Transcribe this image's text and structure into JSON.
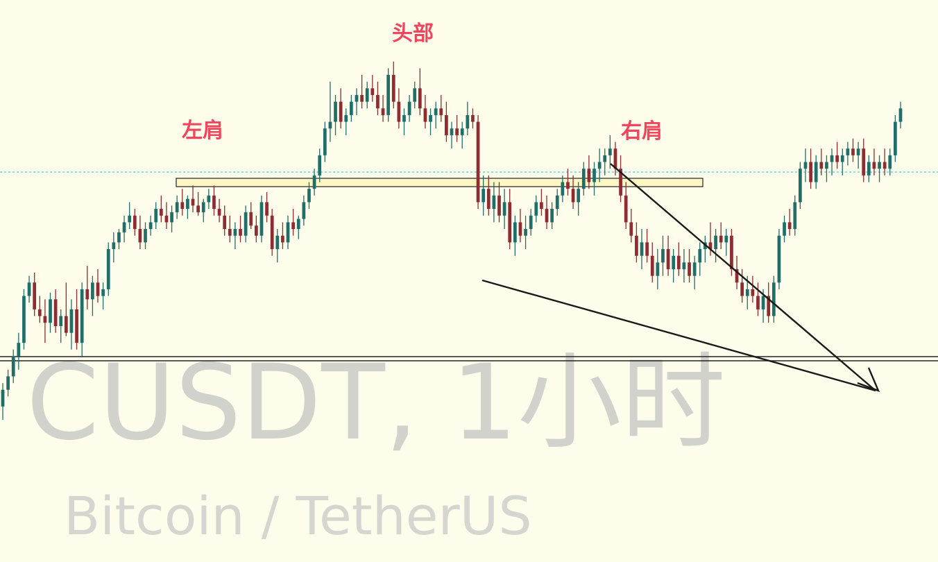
{
  "watermark": {
    "pair": "CUSDT, 1小时",
    "name": "Bitcoin / TetherUS"
  },
  "annotations": {
    "left_shoulder": "左肩",
    "head": "头部",
    "right_shoulder": "右肩"
  },
  "colors": {
    "background": "#fefcea",
    "bull": "#1f6e6a",
    "bear": "#8e2b33",
    "annotation": "#f0465d",
    "neckline_fill": "#fdf7c3",
    "trendline": "#1a1a1a",
    "price_line": "#5fc8c3"
  },
  "chart_data": {
    "type": "candlestick",
    "title": "",
    "xlabel": "",
    "ylabel": "",
    "grid": false,
    "last_price_line": true,
    "patterns": [
      "head and shoulders",
      "descending broadening wedge"
    ],
    "ohlc_relative": [
      [
        0.23,
        0.3,
        0.19,
        0.28
      ],
      [
        0.28,
        0.34,
        0.26,
        0.32
      ],
      [
        0.32,
        0.4,
        0.3,
        0.38
      ],
      [
        0.38,
        0.45,
        0.34,
        0.42
      ],
      [
        0.42,
        0.58,
        0.4,
        0.56
      ],
      [
        0.56,
        0.62,
        0.54,
        0.6
      ],
      [
        0.6,
        0.63,
        0.5,
        0.52
      ],
      [
        0.52,
        0.56,
        0.48,
        0.5
      ],
      [
        0.5,
        0.55,
        0.42,
        0.48
      ],
      [
        0.48,
        0.57,
        0.45,
        0.55
      ],
      [
        0.55,
        0.58,
        0.45,
        0.47
      ],
      [
        0.47,
        0.52,
        0.42,
        0.5
      ],
      [
        0.5,
        0.6,
        0.44,
        0.45
      ],
      [
        0.45,
        0.55,
        0.4,
        0.52
      ],
      [
        0.52,
        0.58,
        0.4,
        0.42
      ],
      [
        0.42,
        0.6,
        0.38,
        0.58
      ],
      [
        0.58,
        0.65,
        0.52,
        0.55
      ],
      [
        0.55,
        0.62,
        0.5,
        0.6
      ],
      [
        0.6,
        0.64,
        0.54,
        0.56
      ],
      [
        0.56,
        0.6,
        0.52,
        0.58
      ],
      [
        0.58,
        0.72,
        0.56,
        0.7
      ],
      [
        0.7,
        0.75,
        0.66,
        0.72
      ],
      [
        0.72,
        0.76,
        0.7,
        0.75
      ],
      [
        0.75,
        0.8,
        0.72,
        0.78
      ],
      [
        0.78,
        0.84,
        0.76,
        0.8
      ],
      [
        0.8,
        0.82,
        0.74,
        0.76
      ],
      [
        0.76,
        0.8,
        0.7,
        0.72
      ],
      [
        0.72,
        0.78,
        0.7,
        0.76
      ],
      [
        0.76,
        0.8,
        0.74,
        0.78
      ],
      [
        0.78,
        0.84,
        0.76,
        0.82
      ],
      [
        0.82,
        0.86,
        0.78,
        0.8
      ],
      [
        0.8,
        0.84,
        0.76,
        0.78
      ],
      [
        0.78,
        0.83,
        0.75,
        0.81
      ],
      [
        0.81,
        0.86,
        0.79,
        0.84
      ],
      [
        0.84,
        0.88,
        0.8,
        0.82
      ],
      [
        0.82,
        0.86,
        0.79,
        0.85
      ],
      [
        0.85,
        0.89,
        0.81,
        0.83
      ],
      [
        0.83,
        0.87,
        0.8,
        0.81
      ],
      [
        0.81,
        0.85,
        0.78,
        0.84
      ],
      [
        0.84,
        0.88,
        0.82,
        0.86
      ],
      [
        0.86,
        0.89,
        0.8,
        0.82
      ],
      [
        0.82,
        0.85,
        0.78,
        0.8
      ],
      [
        0.8,
        0.83,
        0.74,
        0.76
      ],
      [
        0.76,
        0.8,
        0.72,
        0.74
      ],
      [
        0.74,
        0.78,
        0.7,
        0.76
      ],
      [
        0.76,
        0.8,
        0.72,
        0.74
      ],
      [
        0.74,
        0.83,
        0.72,
        0.81
      ],
      [
        0.81,
        0.84,
        0.76,
        0.77
      ],
      [
        0.77,
        0.8,
        0.72,
        0.74
      ],
      [
        0.74,
        0.86,
        0.72,
        0.84
      ],
      [
        0.84,
        0.87,
        0.78,
        0.8
      ],
      [
        0.8,
        0.82,
        0.68,
        0.7
      ],
      [
        0.7,
        0.76,
        0.66,
        0.74
      ],
      [
        0.74,
        0.78,
        0.7,
        0.72
      ],
      [
        0.72,
        0.8,
        0.7,
        0.78
      ],
      [
        0.78,
        0.82,
        0.74,
        0.76
      ],
      [
        0.76,
        0.8,
        0.73,
        0.79
      ],
      [
        0.79,
        0.86,
        0.77,
        0.84
      ],
      [
        0.84,
        0.9,
        0.82,
        0.88
      ],
      [
        0.88,
        0.94,
        0.86,
        0.92
      ],
      [
        0.92,
        1.0,
        0.9,
        0.98
      ],
      [
        0.98,
        1.08,
        0.96,
        1.06
      ],
      [
        1.06,
        1.2,
        1.02,
        1.08
      ],
      [
        1.08,
        1.16,
        1.04,
        1.14
      ],
      [
        1.14,
        1.18,
        1.06,
        1.08
      ],
      [
        1.08,
        1.12,
        1.04,
        1.1
      ],
      [
        1.1,
        1.16,
        1.08,
        1.14
      ],
      [
        1.14,
        1.18,
        1.1,
        1.16
      ],
      [
        1.16,
        1.22,
        1.12,
        1.14
      ],
      [
        1.14,
        1.2,
        1.12,
        1.18
      ],
      [
        1.18,
        1.22,
        1.14,
        1.16
      ],
      [
        1.16,
        1.2,
        1.1,
        1.12
      ],
      [
        1.12,
        1.16,
        1.08,
        1.1
      ],
      [
        1.1,
        1.24,
        1.08,
        1.22
      ],
      [
        1.22,
        1.26,
        1.12,
        1.14
      ],
      [
        1.14,
        1.18,
        1.06,
        1.08
      ],
      [
        1.08,
        1.12,
        1.04,
        1.1
      ],
      [
        1.1,
        1.16,
        1.08,
        1.14
      ],
      [
        1.14,
        1.2,
        1.12,
        1.18
      ],
      [
        1.18,
        1.24,
        1.1,
        1.12
      ],
      [
        1.12,
        1.16,
        1.06,
        1.08
      ],
      [
        1.08,
        1.12,
        1.04,
        1.1
      ],
      [
        1.1,
        1.14,
        1.06,
        1.12
      ],
      [
        1.12,
        1.16,
        1.08,
        1.1
      ],
      [
        1.1,
        1.14,
        1.02,
        1.04
      ],
      [
        1.04,
        1.08,
        1.0,
        1.06
      ],
      [
        1.06,
        1.1,
        1.02,
        1.04
      ],
      [
        1.04,
        1.08,
        1.0,
        1.06
      ],
      [
        1.06,
        1.14,
        1.04,
        1.1
      ],
      [
        1.1,
        1.12,
        1.06,
        1.08
      ],
      [
        1.08,
        1.1,
        0.82,
        0.84
      ],
      [
        0.84,
        0.92,
        0.8,
        0.88
      ],
      [
        0.88,
        0.92,
        0.8,
        0.82
      ],
      [
        0.82,
        0.9,
        0.78,
        0.86
      ],
      [
        0.86,
        0.9,
        0.78,
        0.8
      ],
      [
        0.8,
        0.88,
        0.76,
        0.84
      ],
      [
        0.84,
        0.88,
        0.7,
        0.72
      ],
      [
        0.72,
        0.8,
        0.68,
        0.78
      ],
      [
        0.78,
        0.82,
        0.72,
        0.74
      ],
      [
        0.74,
        0.8,
        0.7,
        0.76
      ],
      [
        0.76,
        0.82,
        0.74,
        0.8
      ],
      [
        0.8,
        0.86,
        0.78,
        0.84
      ],
      [
        0.84,
        0.88,
        0.8,
        0.82
      ],
      [
        0.82,
        0.86,
        0.76,
        0.78
      ],
      [
        0.78,
        0.84,
        0.76,
        0.82
      ],
      [
        0.82,
        0.88,
        0.8,
        0.86
      ],
      [
        0.86,
        0.92,
        0.84,
        0.9
      ],
      [
        0.9,
        0.94,
        0.86,
        0.88
      ],
      [
        0.88,
        0.92,
        0.82,
        0.84
      ],
      [
        0.84,
        0.9,
        0.8,
        0.88
      ],
      [
        0.88,
        0.96,
        0.86,
        0.94
      ],
      [
        0.94,
        0.98,
        0.88,
        0.9
      ],
      [
        0.9,
        0.96,
        0.86,
        0.94
      ],
      [
        0.94,
        1.0,
        0.9,
        0.96
      ],
      [
        0.96,
        1.0,
        0.92,
        0.98
      ],
      [
        0.98,
        1.04,
        0.94,
        1.0
      ],
      [
        1.0,
        1.02,
        0.92,
        0.94
      ],
      [
        0.94,
        0.98,
        0.84,
        0.86
      ],
      [
        0.86,
        0.9,
        0.76,
        0.78
      ],
      [
        0.78,
        0.82,
        0.72,
        0.74
      ],
      [
        0.74,
        0.78,
        0.66,
        0.68
      ],
      [
        0.68,
        0.76,
        0.64,
        0.72
      ],
      [
        0.72,
        0.76,
        0.66,
        0.68
      ],
      [
        0.68,
        0.72,
        0.6,
        0.62
      ],
      [
        0.62,
        0.7,
        0.58,
        0.66
      ],
      [
        0.66,
        0.74,
        0.62,
        0.7
      ],
      [
        0.7,
        0.74,
        0.62,
        0.64
      ],
      [
        0.64,
        0.7,
        0.6,
        0.68
      ],
      [
        0.68,
        0.72,
        0.62,
        0.64
      ],
      [
        0.64,
        0.7,
        0.6,
        0.66
      ],
      [
        0.66,
        0.7,
        0.6,
        0.62
      ],
      [
        0.62,
        0.68,
        0.58,
        0.66
      ],
      [
        0.66,
        0.72,
        0.62,
        0.7
      ],
      [
        0.7,
        0.74,
        0.66,
        0.72
      ],
      [
        0.72,
        0.78,
        0.68,
        0.7
      ],
      [
        0.7,
        0.76,
        0.66,
        0.74
      ],
      [
        0.74,
        0.78,
        0.7,
        0.72
      ],
      [
        0.72,
        0.76,
        0.68,
        0.74
      ],
      [
        0.74,
        0.76,
        0.62,
        0.64
      ],
      [
        0.64,
        0.68,
        0.58,
        0.6
      ],
      [
        0.6,
        0.64,
        0.54,
        0.56
      ],
      [
        0.56,
        0.62,
        0.52,
        0.58
      ],
      [
        0.58,
        0.62,
        0.54,
        0.56
      ],
      [
        0.56,
        0.6,
        0.5,
        0.52
      ],
      [
        0.52,
        0.58,
        0.48,
        0.56
      ],
      [
        0.56,
        0.6,
        0.48,
        0.5
      ],
      [
        0.5,
        0.62,
        0.48,
        0.6
      ],
      [
        0.6,
        0.76,
        0.58,
        0.74
      ],
      [
        0.74,
        0.8,
        0.72,
        0.78
      ],
      [
        0.78,
        0.82,
        0.74,
        0.76
      ],
      [
        0.76,
        0.86,
        0.74,
        0.84
      ],
      [
        0.84,
        0.96,
        0.82,
        0.94
      ],
      [
        0.94,
        1.0,
        0.9,
        0.96
      ],
      [
        0.96,
        1.0,
        0.88,
        0.9
      ],
      [
        0.9,
        0.98,
        0.88,
        0.96
      ],
      [
        0.96,
        1.0,
        0.92,
        0.94
      ],
      [
        0.94,
        0.98,
        0.9,
        0.96
      ],
      [
        0.96,
        1.0,
        0.92,
        0.98
      ],
      [
        0.98,
        1.02,
        0.94,
        0.96
      ],
      [
        0.96,
        1.0,
        0.92,
        0.98
      ],
      [
        0.98,
        1.02,
        0.95,
        1.0
      ],
      [
        1.0,
        1.03,
        0.96,
        0.98
      ],
      [
        0.98,
        1.02,
        0.94,
        1.0
      ],
      [
        1.0,
        1.03,
        0.9,
        0.92
      ],
      [
        0.92,
        0.98,
        0.9,
        0.96
      ],
      [
        0.96,
        1.0,
        0.92,
        0.94
      ],
      [
        0.94,
        0.98,
        0.9,
        0.96
      ],
      [
        0.96,
        1.0,
        0.92,
        0.94
      ],
      [
        0.94,
        1.0,
        0.92,
        0.98
      ],
      [
        0.98,
        1.1,
        0.96,
        1.08
      ],
      [
        1.08,
        1.14,
        1.06,
        1.12
      ]
    ]
  }
}
